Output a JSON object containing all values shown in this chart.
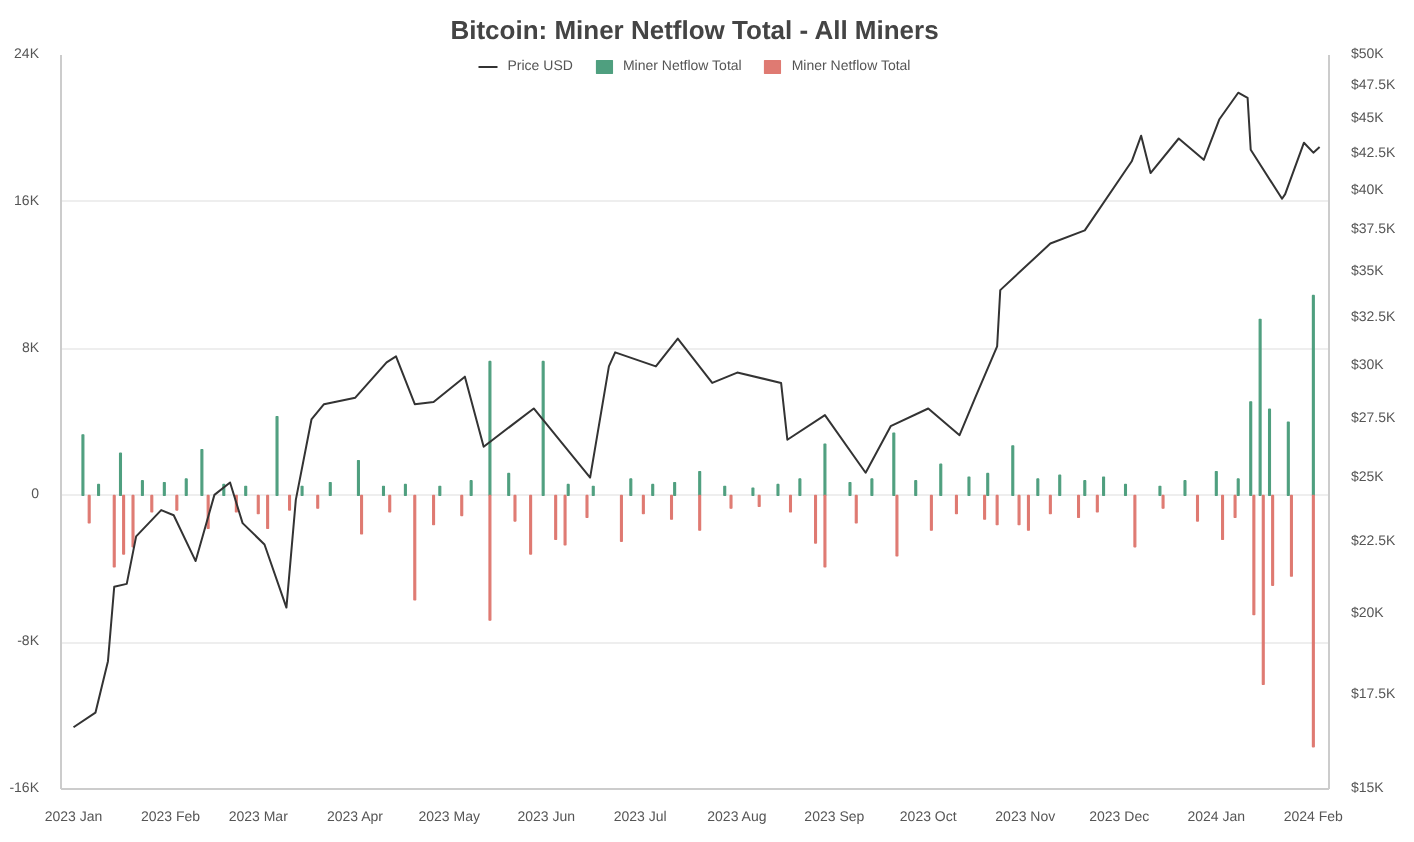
{
  "chart_data": {
    "type": "bar",
    "title": "Bitcoin: Miner Netflow Total - All Miners",
    "xlim": [
      "2022-12-28",
      "2024-02-06"
    ],
    "xticks": [
      {
        "value": "2023-01-01",
        "label": "2023 Jan"
      },
      {
        "value": "2023-02-01",
        "label": "2023 Feb"
      },
      {
        "value": "2023-03-01",
        "label": "2023 Mar"
      },
      {
        "value": "2023-04-01",
        "label": "2023 Apr"
      },
      {
        "value": "2023-05-01",
        "label": "2023 May"
      },
      {
        "value": "2023-06-01",
        "label": "2023 Jun"
      },
      {
        "value": "2023-07-01",
        "label": "2023 Jul"
      },
      {
        "value": "2023-08-01",
        "label": "2023 Aug"
      },
      {
        "value": "2023-09-01",
        "label": "2023 Sep"
      },
      {
        "value": "2023-10-01",
        "label": "2023 Oct"
      },
      {
        "value": "2023-11-01",
        "label": "2023 Nov"
      },
      {
        "value": "2023-12-01",
        "label": "2023 Dec"
      },
      {
        "value": "2024-01-01",
        "label": "2024 Jan"
      },
      {
        "value": "2024-02-01",
        "label": "2024 Feb"
      }
    ],
    "ylim": [
      -16000,
      24000
    ],
    "yticks": [
      {
        "value": -16000,
        "label": "-16K"
      },
      {
        "value": -8000,
        "label": "-8K"
      },
      0,
      {
        "value": 8000,
        "label": "8K"
      },
      {
        "value": 16000,
        "label": "16K"
      },
      {
        "value": 24000,
        "label": "24K"
      }
    ],
    "y2lim": [
      15000,
      50000
    ],
    "log": "y2",
    "y2ticks": [
      {
        "value": 15000,
        "label": "$15K"
      },
      {
        "value": 17500,
        "label": "$17.5K"
      },
      {
        "value": 20000,
        "label": "$20K"
      },
      {
        "value": 22500,
        "label": "$22.5K"
      },
      {
        "value": 25000,
        "label": "$25K"
      },
      {
        "value": 27500,
        "label": "$27.5K"
      },
      {
        "value": 30000,
        "label": "$30K"
      },
      {
        "value": 32500,
        "label": "$32.5K"
      },
      {
        "value": 35000,
        "label": "$35K"
      },
      {
        "value": 37500,
        "label": "$37.5K"
      },
      {
        "value": 40000,
        "label": "$40K"
      },
      {
        "value": 42500,
        "label": "$42.5K"
      },
      {
        "value": 45000,
        "label": "$45K"
      },
      {
        "value": 47500,
        "label": "$47.5K"
      },
      {
        "value": 50000,
        "label": "$50K"
      }
    ],
    "grid": "y",
    "legend": "top",
    "series": [
      {
        "name": "Price USD",
        "type": "line",
        "axis": "y2",
        "color": "#333333",
        "x": [
          "2023-01-01",
          "2023-01-08",
          "2023-01-12",
          "2023-01-14",
          "2023-01-18",
          "2023-01-21",
          "2023-01-29",
          "2023-02-02",
          "2023-02-09",
          "2023-02-15",
          "2023-02-20",
          "2023-02-24",
          "2023-03-03",
          "2023-03-10",
          "2023-03-13",
          "2023-03-18",
          "2023-03-22",
          "2023-04-01",
          "2023-04-11",
          "2023-04-14",
          "2023-04-20",
          "2023-04-26",
          "2023-05-06",
          "2023-05-12",
          "2023-05-28",
          "2023-06-10",
          "2023-06-15",
          "2023-06-21",
          "2023-06-23",
          "2023-07-06",
          "2023-07-13",
          "2023-07-24",
          "2023-08-01",
          "2023-08-15",
          "2023-08-17",
          "2023-08-29",
          "2023-09-11",
          "2023-09-19",
          "2023-10-01",
          "2023-10-11",
          "2023-10-16",
          "2023-10-23",
          "2023-10-24",
          "2023-11-09",
          "2023-11-20",
          "2023-12-05",
          "2023-12-08",
          "2023-12-11",
          "2023-12-20",
          "2023-12-28",
          "2024-01-02",
          "2024-01-08",
          "2024-01-11",
          "2024-01-12",
          "2024-01-22",
          "2024-01-23",
          "2024-01-29",
          "2024-02-01",
          "2024-02-03"
        ],
        "values": [
          16600,
          17000,
          18500,
          20900,
          21000,
          22700,
          23700,
          23500,
          21800,
          24300,
          24800,
          23200,
          22400,
          20200,
          24100,
          27500,
          28200,
          28500,
          30200,
          30500,
          28200,
          28300,
          29500,
          26300,
          28000,
          25800,
          25000,
          30000,
          30700,
          30000,
          31400,
          29200,
          29700,
          29200,
          26600,
          27700,
          25200,
          27200,
          28000,
          26800,
          28500,
          31000,
          34000,
          36700,
          37500,
          42000,
          43800,
          41200,
          43600,
          42100,
          45000,
          47000,
          46600,
          42800,
          39500,
          39800,
          43300,
          42600,
          43000
        ]
      },
      {
        "name": "Miner Netflow Total",
        "color": "#4f9f7f",
        "x": [
          "2023-01-04",
          "2023-01-09",
          "2023-01-16",
          "2023-01-23",
          "2023-01-30",
          "2023-02-06",
          "2023-02-11",
          "2023-02-18",
          "2023-02-25",
          "2023-03-07",
          "2023-03-15",
          "2023-03-24",
          "2023-04-02",
          "2023-04-10",
          "2023-04-17",
          "2023-04-28",
          "2023-05-08",
          "2023-05-14",
          "2023-05-20",
          "2023-05-31",
          "2023-06-08",
          "2023-06-16",
          "2023-06-28",
          "2023-07-05",
          "2023-07-12",
          "2023-07-20",
          "2023-07-28",
          "2023-08-06",
          "2023-08-14",
          "2023-08-21",
          "2023-08-29",
          "2023-09-06",
          "2023-09-13",
          "2023-09-20",
          "2023-09-27",
          "2023-10-05",
          "2023-10-14",
          "2023-10-20",
          "2023-10-28",
          "2023-11-05",
          "2023-11-12",
          "2023-11-20",
          "2023-11-26",
          "2023-12-03",
          "2023-12-14",
          "2023-12-22",
          "2024-01-01",
          "2024-01-08",
          "2024-01-12",
          "2024-01-15",
          "2024-01-18",
          "2024-01-24",
          "2024-02-01"
        ],
        "values": [
          3300,
          600,
          2300,
          800,
          700,
          900,
          2500,
          600,
          500,
          4300,
          500,
          700,
          1900,
          500,
          600,
          500,
          800,
          7300,
          1200,
          7300,
          600,
          500,
          900,
          600,
          700,
          1300,
          500,
          400,
          600,
          900,
          2800,
          700,
          900,
          3400,
          800,
          1700,
          1000,
          1200,
          2700,
          900,
          1100,
          800,
          1000,
          600,
          500,
          800,
          1300,
          900,
          5100,
          9600,
          4700,
          4000,
          10900
        ]
      },
      {
        "name": "Miner Netflow Total",
        "color": "#df7a72",
        "x": [
          "2023-01-06",
          "2023-01-14",
          "2023-01-17",
          "2023-01-20",
          "2023-01-26",
          "2023-02-03",
          "2023-02-13",
          "2023-02-22",
          "2023-03-01",
          "2023-03-04",
          "2023-03-11",
          "2023-03-20",
          "2023-04-03",
          "2023-04-12",
          "2023-04-20",
          "2023-04-26",
          "2023-05-05",
          "2023-05-14",
          "2023-05-22",
          "2023-05-27",
          "2023-06-04",
          "2023-06-07",
          "2023-06-14",
          "2023-06-25",
          "2023-07-02",
          "2023-07-11",
          "2023-07-20",
          "2023-07-30",
          "2023-08-08",
          "2023-08-18",
          "2023-08-26",
          "2023-08-29",
          "2023-09-08",
          "2023-09-21",
          "2023-10-02",
          "2023-10-10",
          "2023-10-19",
          "2023-10-23",
          "2023-10-30",
          "2023-11-02",
          "2023-11-09",
          "2023-11-18",
          "2023-11-24",
          "2023-12-06",
          "2023-12-15",
          "2023-12-26",
          "2024-01-03",
          "2024-01-07",
          "2024-01-13",
          "2024-01-16",
          "2024-01-19",
          "2024-01-25",
          "2024-02-01"
        ],
        "values": [
          -1500,
          -3900,
          -3200,
          -2800,
          -900,
          -800,
          -1800,
          -900,
          -1000,
          -1800,
          -800,
          -700,
          -2100,
          -900,
          -5700,
          -1600,
          -1100,
          -6800,
          -1400,
          -3200,
          -2400,
          -2700,
          -1200,
          -2500,
          -1000,
          -1300,
          -1900,
          -700,
          -600,
          -900,
          -2600,
          -3900,
          -1500,
          -3300,
          -1900,
          -1000,
          -1300,
          -1600,
          -1600,
          -1900,
          -1000,
          -1200,
          -900,
          -2800,
          -700,
          -1400,
          -2400,
          -1200,
          -6500,
          -10300,
          -4900,
          -4400,
          -13700
        ]
      }
    ]
  }
}
